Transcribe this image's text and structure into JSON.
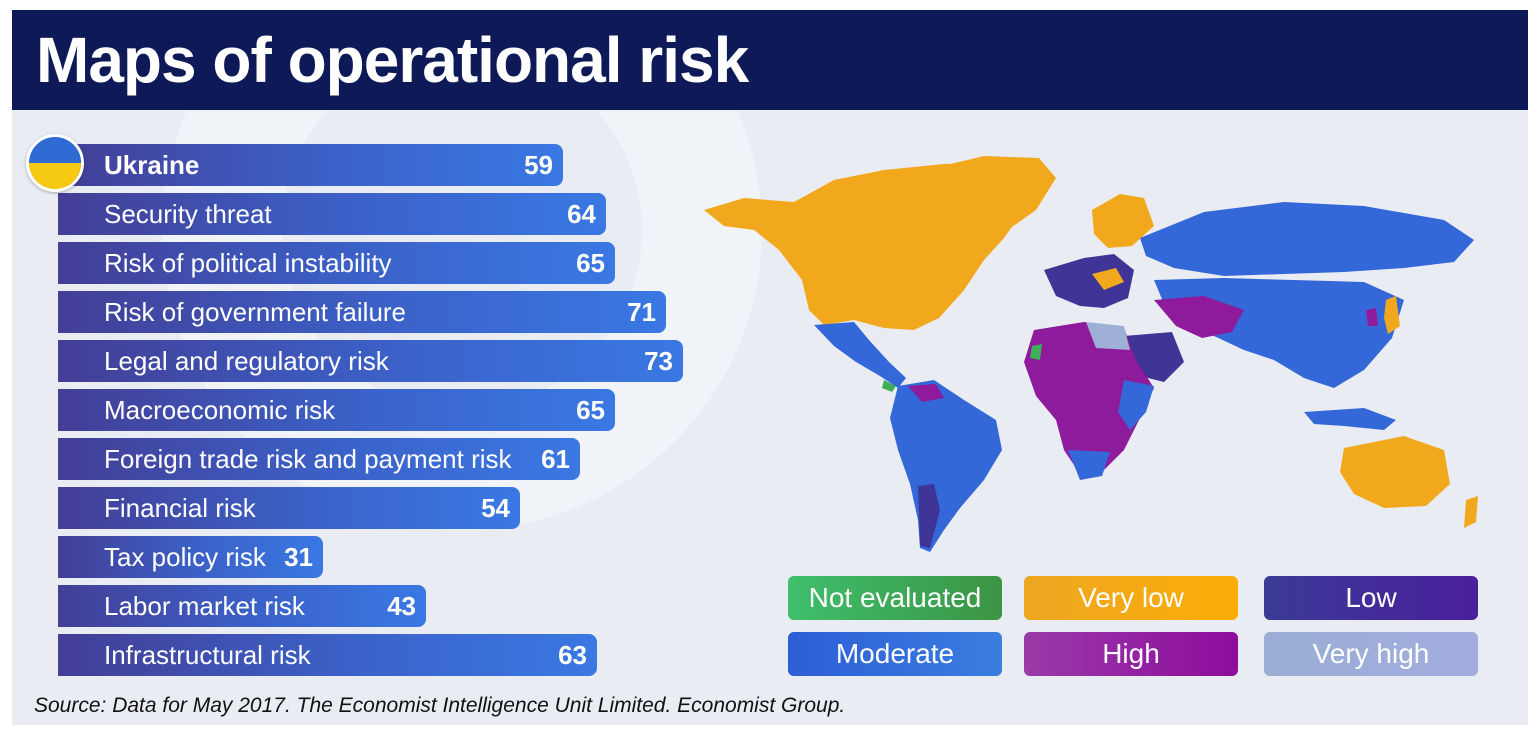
{
  "title": "Maps of operational risk",
  "source": "Source: Data for May 2017. The Economist Intelligence Unit Limited. Economist Group.",
  "country": "Ukraine",
  "country_icon": "ukraine-flag-icon",
  "chart_data": {
    "type": "bar",
    "orientation": "horizontal",
    "categories": [
      "Ukraine",
      "Security threat",
      "Risk of political instability",
      "Risk of government failure",
      "Legal and regulatory risk",
      "Macroeconomic risk",
      "Foreign trade risk and payment risk",
      "Financial risk",
      "Tax policy risk",
      "Labor market risk",
      "Infrastructural risk"
    ],
    "values": [
      59,
      64,
      65,
      71,
      73,
      65,
      61,
      54,
      31,
      43,
      63
    ],
    "title": "",
    "xlabel": "",
    "ylabel": ""
  },
  "legend": [
    {
      "label": "Not evaluated",
      "color_from": "#3fbf6c",
      "color_to": "#3b9444"
    },
    {
      "label": "Very low",
      "color_from": "#eda623",
      "color_to": "#fbad06"
    },
    {
      "label": "Low",
      "color_from": "#3b3a97",
      "color_to": "#4a1f9c"
    },
    {
      "label": "Moderate",
      "color_from": "#2d5ed6",
      "color_to": "#3a7ee0"
    },
    {
      "label": "High",
      "color_from": "#9a3aa9",
      "color_to": "#8e0c9c"
    },
    {
      "label": "Very high",
      "color_from": "#9aaed4",
      "color_to": "#a1acdf"
    }
  ],
  "colors": {
    "header": "#0d1a57",
    "background": "#e9edf3",
    "not_evaluated": "#3fae5a",
    "very_low": "#f2a81d",
    "low": "#3f3596",
    "moderate": "#3468d8",
    "high": "#8e1a9c",
    "very_high": "#9eb0d6"
  }
}
